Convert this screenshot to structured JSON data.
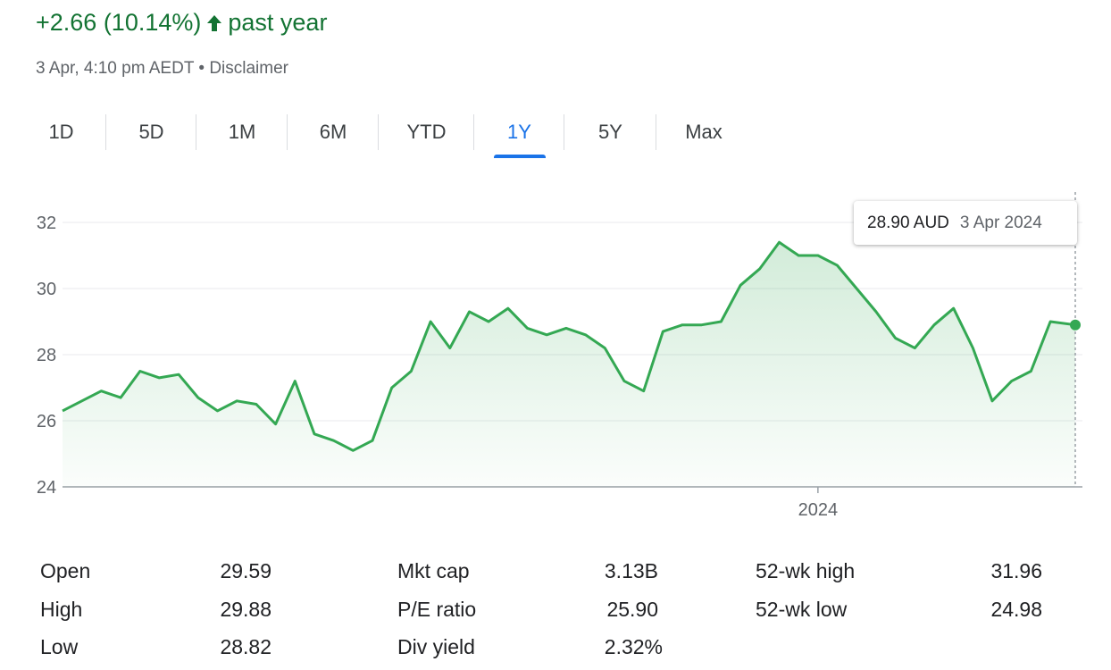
{
  "header": {
    "change_text": "+2.66 (10.14%)",
    "period_text": "past year",
    "arrow_icon": "arrow-up-icon",
    "timestamp": "3 Apr, 4:10 pm AEDT",
    "separator": "•",
    "disclaimer": "Disclaimer"
  },
  "tabs": [
    {
      "label": "1D",
      "active": false
    },
    {
      "label": "5D",
      "active": false
    },
    {
      "label": "1M",
      "active": false
    },
    {
      "label": "6M",
      "active": false
    },
    {
      "label": "YTD",
      "active": false
    },
    {
      "label": "1Y",
      "active": true
    },
    {
      "label": "5Y",
      "active": false
    },
    {
      "label": "Max",
      "active": false
    }
  ],
  "tooltip": {
    "price": "28.90 AUD",
    "date": "3 Apr 2024"
  },
  "colors": {
    "positive": "#137333",
    "line": "#34a853",
    "active_tab": "#1a73e8",
    "grid": "#e8eaed"
  },
  "chart_data": {
    "type": "line",
    "currency": "AUD",
    "x_range": [
      "2023-04-03",
      "2024-04-03"
    ],
    "x_tick_labels": [
      {
        "label": "2024",
        "date": "2024-01-01"
      }
    ],
    "y_ticks": [
      24,
      26,
      28,
      30,
      32
    ],
    "ylim": [
      24,
      32
    ],
    "grid": true,
    "series": [
      {
        "points": [
          [
            "2023-04-03",
            26.3
          ],
          [
            "2023-04-10",
            26.6
          ],
          [
            "2023-04-17",
            26.9
          ],
          [
            "2023-04-24",
            26.7
          ],
          [
            "2023-05-01",
            27.5
          ],
          [
            "2023-05-08",
            27.3
          ],
          [
            "2023-05-15",
            27.4
          ],
          [
            "2023-05-22",
            26.7
          ],
          [
            "2023-05-29",
            26.3
          ],
          [
            "2023-06-05",
            26.6
          ],
          [
            "2023-06-12",
            26.5
          ],
          [
            "2023-06-19",
            25.9
          ],
          [
            "2023-06-26",
            27.2
          ],
          [
            "2023-07-03",
            25.6
          ],
          [
            "2023-07-10",
            25.4
          ],
          [
            "2023-07-17",
            25.1
          ],
          [
            "2023-07-24",
            25.4
          ],
          [
            "2023-07-31",
            27.0
          ],
          [
            "2023-08-07",
            27.5
          ],
          [
            "2023-08-14",
            29.0
          ],
          [
            "2023-08-21",
            28.2
          ],
          [
            "2023-08-28",
            29.3
          ],
          [
            "2023-09-04",
            29.0
          ],
          [
            "2023-09-11",
            29.4
          ],
          [
            "2023-09-18",
            28.8
          ],
          [
            "2023-09-25",
            28.6
          ],
          [
            "2023-10-02",
            28.8
          ],
          [
            "2023-10-09",
            28.6
          ],
          [
            "2023-10-16",
            28.2
          ],
          [
            "2023-10-23",
            27.2
          ],
          [
            "2023-10-30",
            26.9
          ],
          [
            "2023-11-06",
            28.7
          ],
          [
            "2023-11-13",
            28.9
          ],
          [
            "2023-11-20",
            28.9
          ],
          [
            "2023-11-27",
            29.0
          ],
          [
            "2023-12-04",
            30.1
          ],
          [
            "2023-12-11",
            30.6
          ],
          [
            "2023-12-18",
            31.4
          ],
          [
            "2023-12-25",
            31.0
          ],
          [
            "2024-01-01",
            31.0
          ],
          [
            "2024-01-08",
            30.7
          ],
          [
            "2024-01-15",
            30.0
          ],
          [
            "2024-01-22",
            29.3
          ],
          [
            "2024-01-29",
            28.5
          ],
          [
            "2024-02-05",
            28.2
          ],
          [
            "2024-02-12",
            28.9
          ],
          [
            "2024-02-19",
            29.4
          ],
          [
            "2024-02-26",
            28.2
          ],
          [
            "2024-03-04",
            26.6
          ],
          [
            "2024-03-11",
            27.2
          ],
          [
            "2024-03-18",
            27.5
          ],
          [
            "2024-03-25",
            29.0
          ],
          [
            "2024-04-03",
            28.9
          ]
        ]
      }
    ]
  },
  "stats": [
    {
      "label": "Open",
      "value": "29.59"
    },
    {
      "label": "High",
      "value": "29.88"
    },
    {
      "label": "Low",
      "value": "28.82"
    },
    {
      "label": "Mkt cap",
      "value": "3.13B"
    },
    {
      "label": "P/E ratio",
      "value": "25.90"
    },
    {
      "label": "Div yield",
      "value": "2.32%"
    },
    {
      "label": "52-wk high",
      "value": "31.96"
    },
    {
      "label": "52-wk low",
      "value": "24.98"
    }
  ]
}
